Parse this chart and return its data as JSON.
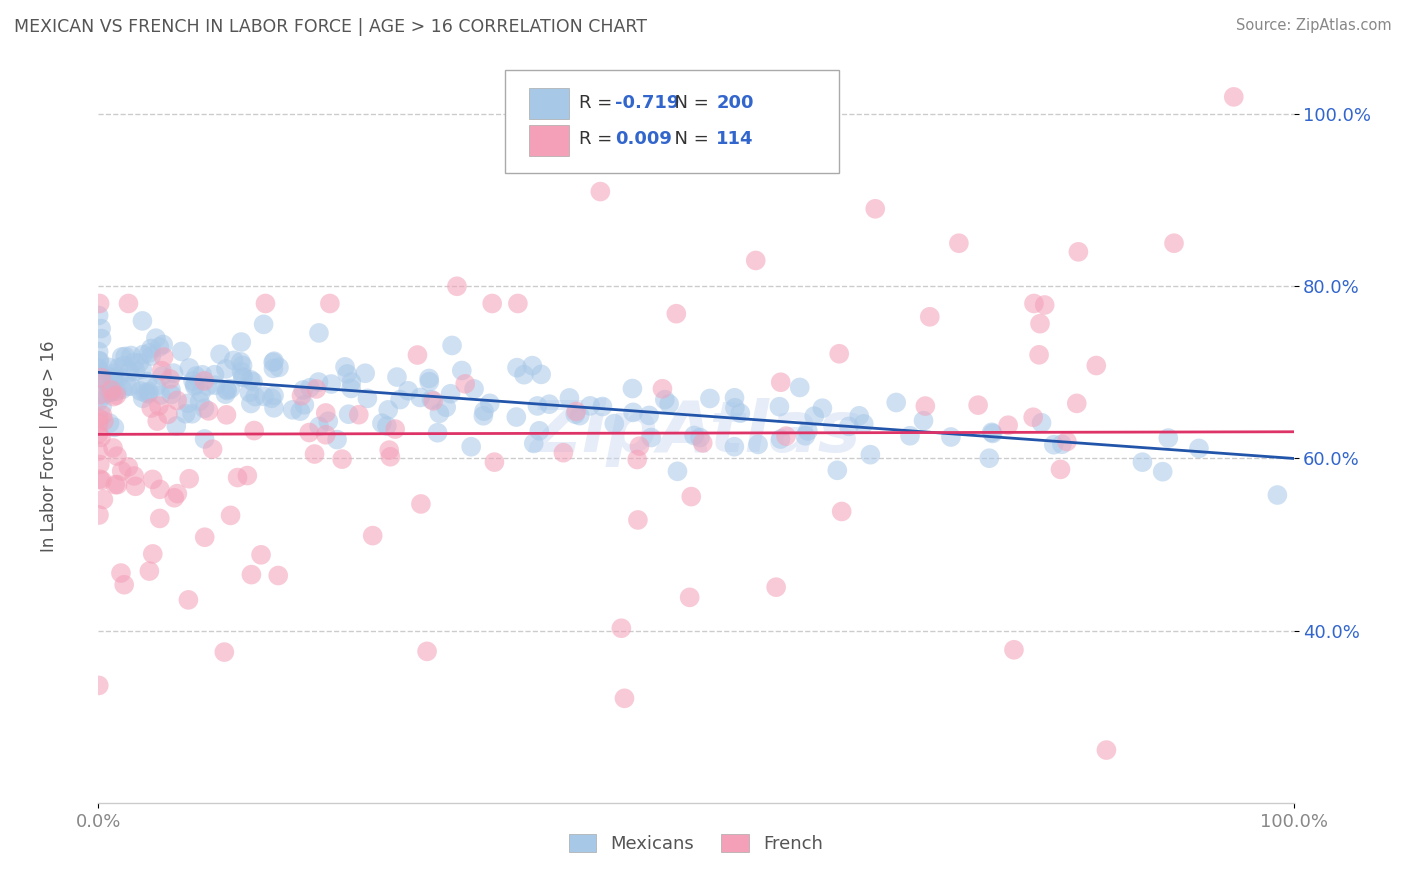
{
  "title": "MEXICAN VS FRENCH IN LABOR FORCE | AGE > 16 CORRELATION CHART",
  "source": "Source: ZipAtlas.com",
  "ylabel": "In Labor Force | Age > 16",
  "xlim": [
    0.0,
    1.0
  ],
  "ylim": [
    0.2,
    1.06
  ],
  "yticks": [
    0.4,
    0.6,
    0.8,
    1.0
  ],
  "xticks": [
    0.0,
    1.0
  ],
  "xtick_labels": [
    "0.0%",
    "100.0%"
  ],
  "ytick_labels": [
    "40.0%",
    "60.0%",
    "80.0%",
    "100.0%"
  ],
  "blue_R": -0.719,
  "blue_N": 200,
  "pink_R": 0.009,
  "pink_N": 114,
  "blue_color": "#a8c8e8",
  "pink_color": "#f4a0b8",
  "blue_line_color": "#2255aa",
  "pink_line_color": "#dd3366",
  "legend_label_mexicans": "Mexicans",
  "legend_label_french": "French",
  "watermark": "ZipAtlas",
  "title_color": "#555555",
  "grid_color": "#cccccc",
  "source_color": "#888888",
  "blue_trend_start": 0.7,
  "blue_trend_end": 0.6,
  "pink_trend_start": 0.628,
  "pink_trend_end": 0.631,
  "random_seed_blue": 42,
  "random_seed_pink": 7,
  "n_blue": 200,
  "n_pink": 114
}
